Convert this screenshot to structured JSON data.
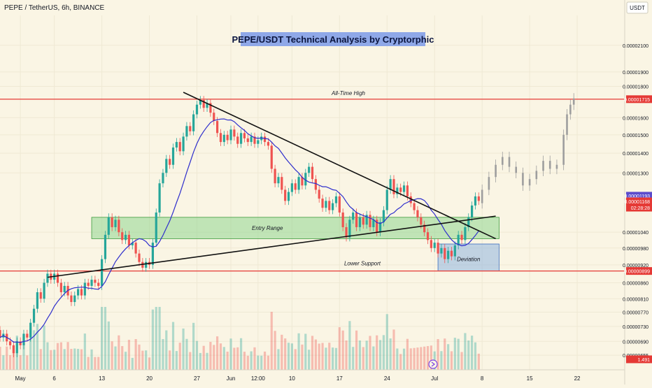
{
  "header": {
    "symbol": "PEPE / TetherUS, 6h, BINANCE",
    "currency": "USDT"
  },
  "colors": {
    "background": "#faf5e4",
    "candle_up": "#26a69a",
    "candle_down": "#ef5350",
    "ma_line": "#2e2ecc",
    "resistance_line": "#e53935",
    "zone_fill": "#8fd68f",
    "deviation_fill": "#8fb4e0",
    "title_bg": "#8fa8e8",
    "projection": "#9e9e9e",
    "price_tag_red": "#e53935",
    "price_tag_blue": "#5b4ccc"
  },
  "chart_data": {
    "type": "candlestick",
    "title": "PEPE/USDT Technical Analysis by Cryptorphic",
    "y_scale": "log",
    "ylim": [
      6.2e-06,
      2.35e-05
    ],
    "y_ticks": [
      "0.00002100",
      "0.00001900",
      "0.00001800",
      "0.00001600",
      "0.00001500",
      "0.00001400",
      "0.00001300",
      "0.00001040",
      "0.00000980",
      "0.00000920",
      "0.00000860",
      "0.00000810",
      "0.00000770",
      "0.00000730",
      "0.00000690",
      "0.00000655"
    ],
    "x_ticks": [
      "May",
      "6",
      "13",
      "20",
      "27",
      "Jun",
      "12:00",
      "10",
      "17",
      "24",
      "Jul",
      "8",
      "15",
      "22"
    ],
    "x_tick_values": [
      0,
      5,
      12,
      19,
      26,
      31,
      35,
      40,
      47,
      54,
      61,
      68,
      75,
      82
    ],
    "x_range": [
      -3,
      89
    ],
    "price_tags": [
      {
        "label": "0.00001715",
        "value": 1.715e-05,
        "color": "red"
      },
      {
        "label": "0.00001193",
        "value": 1.193e-05,
        "color": "blue"
      },
      {
        "label": "0.00001168",
        "value": 1.168e-05,
        "color": "red",
        "sub": "02:28:28"
      },
      {
        "label": "0.00000899",
        "value": 8.99e-06,
        "color": "red"
      },
      {
        "label": "1.491",
        "value": 6.45e-06,
        "color": "red"
      }
    ],
    "horizontal_levels": [
      {
        "label": "All-Time High",
        "value": 1.715e-05
      },
      {
        "label": "Lower Support",
        "value": 8.99e-06
      }
    ],
    "zones": [
      {
        "label": "Entry Range",
        "x_start": 10.5,
        "x_end": 70.5,
        "y_low": 1.015e-05,
        "y_high": 1.1e-05
      },
      {
        "label": "Deviation",
        "x_start": 61.5,
        "x_end": 70.5,
        "y_low": 8.99e-06,
        "y_high": 9.95e-06
      }
    ],
    "trendlines": [
      {
        "name": "descending resistance",
        "from": [
          24,
          1.76e-05
        ],
        "to": [
          70,
          1.015e-05
        ]
      },
      {
        "name": "ascending support",
        "from": [
          4,
          8.78e-06
        ],
        "to": [
          70,
          1.105e-05
        ]
      }
    ],
    "candles": [
      {
        "d": -3,
        "o": 7.2e-06,
        "c": 7e-06
      },
      {
        "d": -2.5,
        "o": 7e-06,
        "c": 7.1e-06
      },
      {
        "d": -2,
        "o": 7.1e-06,
        "c": 6.9e-06
      },
      {
        "d": -1.5,
        "o": 6.9e-06,
        "c": 6.8e-06
      },
      {
        "d": -1,
        "o": 6.8e-06,
        "c": 6.6e-06
      },
      {
        "d": -0.5,
        "o": 6.6e-06,
        "c": 6.9e-06
      },
      {
        "d": 0,
        "o": 6.9e-06,
        "c": 6.8e-06
      },
      {
        "d": 0.5,
        "o": 6.8e-06,
        "c": 7.1e-06
      },
      {
        "d": 1,
        "o": 7.1e-06,
        "c": 7e-06
      },
      {
        "d": 1.5,
        "o": 7e-06,
        "c": 7.4e-06
      },
      {
        "d": 2,
        "o": 7.4e-06,
        "c": 7.8e-06
      },
      {
        "d": 2.5,
        "o": 7.8e-06,
        "c": 8.3e-06
      },
      {
        "d": 3,
        "o": 8.3e-06,
        "c": 8.1e-06
      },
      {
        "d": 3.5,
        "o": 8.1e-06,
        "c": 8.6e-06
      },
      {
        "d": 4,
        "o": 8.6e-06,
        "c": 8.9e-06
      },
      {
        "d": 4.5,
        "o": 8.9e-06,
        "c": 8.7e-06
      },
      {
        "d": 5,
        "o": 8.7e-06,
        "c": 8.9e-06
      },
      {
        "d": 5.5,
        "o": 8.9e-06,
        "c": 8.6e-06
      },
      {
        "d": 6,
        "o": 8.6e-06,
        "c": 8.3e-06
      },
      {
        "d": 6.5,
        "o": 8.3e-06,
        "c": 8.5e-06
      },
      {
        "d": 7,
        "o": 8.5e-06,
        "c": 8.2e-06
      },
      {
        "d": 7.5,
        "o": 8.2e-06,
        "c": 8e-06
      },
      {
        "d": 8,
        "o": 8e-06,
        "c": 8.2e-06
      },
      {
        "d": 8.5,
        "o": 8.2e-06,
        "c": 8.4e-06
      },
      {
        "d": 9,
        "o": 8.4e-06,
        "c": 8.2e-06
      },
      {
        "d": 9.5,
        "o": 8.2e-06,
        "c": 8.6e-06
      },
      {
        "d": 10,
        "o": 8.6e-06,
        "c": 8.5e-06
      },
      {
        "d": 10.5,
        "o": 8.5e-06,
        "c": 8.7e-06
      },
      {
        "d": 11,
        "o": 8.7e-06,
        "c": 8.6e-06
      },
      {
        "d": 11.5,
        "o": 8.6e-06,
        "c": 8.5e-06
      },
      {
        "d": 12,
        "o": 8.5e-06,
        "c": 9.4e-06
      },
      {
        "d": 12.5,
        "o": 9.4e-06,
        "c": 1.03e-05
      },
      {
        "d": 13,
        "o": 1.03e-05,
        "c": 1.1e-05
      },
      {
        "d": 13.5,
        "o": 1.1e-05,
        "c": 1.06e-05
      },
      {
        "d": 14,
        "o": 1.06e-05,
        "c": 1.09e-05
      },
      {
        "d": 14.5,
        "o": 1.09e-05,
        "c": 1.04e-05
      },
      {
        "d": 15,
        "o": 1.04e-05,
        "c": 1.01e-05
      },
      {
        "d": 15.5,
        "o": 1.01e-05,
        "c": 1.03e-05
      },
      {
        "d": 16,
        "o": 1.03e-05,
        "c": 9.9e-06
      },
      {
        "d": 16.5,
        "o": 9.9e-06,
        "c": 1e-05
      },
      {
        "d": 17,
        "o": 1e-05,
        "c": 9.6e-06
      },
      {
        "d": 17.5,
        "o": 9.6e-06,
        "c": 9.3e-06
      },
      {
        "d": 18,
        "o": 9.3e-06,
        "c": 9.1e-06
      },
      {
        "d": 18.5,
        "o": 9.1e-06,
        "c": 9.3e-06
      },
      {
        "d": 19,
        "o": 9.3e-06,
        "c": 9.2e-06
      },
      {
        "d": 19.5,
        "o": 9.2e-06,
        "c": 1e-05
      },
      {
        "d": 20,
        "o": 1e-05,
        "c": 1.12e-05
      },
      {
        "d": 20.5,
        "o": 1.12e-05,
        "c": 1.25e-05
      },
      {
        "d": 21,
        "o": 1.25e-05,
        "c": 1.3e-05
      },
      {
        "d": 21.5,
        "o": 1.3e-05,
        "c": 1.37e-05
      },
      {
        "d": 22,
        "o": 1.37e-05,
        "c": 1.34e-05
      },
      {
        "d": 22.5,
        "o": 1.34e-05,
        "c": 1.43e-05
      },
      {
        "d": 23,
        "o": 1.43e-05,
        "c": 1.46e-05
      },
      {
        "d": 23.5,
        "o": 1.46e-05,
        "c": 1.41e-05
      },
      {
        "d": 24,
        "o": 1.41e-05,
        "c": 1.49e-05
      },
      {
        "d": 24.5,
        "o": 1.49e-05,
        "c": 1.55e-05
      },
      {
        "d": 25,
        "o": 1.55e-05,
        "c": 1.52e-05
      },
      {
        "d": 25.5,
        "o": 1.52e-05,
        "c": 1.62e-05
      },
      {
        "d": 26,
        "o": 1.62e-05,
        "c": 1.68e-05
      },
      {
        "d": 26.5,
        "o": 1.68e-05,
        "c": 1.71e-05
      },
      {
        "d": 27,
        "o": 1.71e-05,
        "c": 1.66e-05
      },
      {
        "d": 27.5,
        "o": 1.66e-05,
        "c": 1.69e-05
      },
      {
        "d": 28,
        "o": 1.69e-05,
        "c": 1.63e-05
      },
      {
        "d": 28.5,
        "o": 1.63e-05,
        "c": 1.58e-05
      },
      {
        "d": 29,
        "o": 1.58e-05,
        "c": 1.51e-05
      },
      {
        "d": 29.5,
        "o": 1.51e-05,
        "c": 1.46e-05
      },
      {
        "d": 30,
        "o": 1.46e-05,
        "c": 1.5e-05
      },
      {
        "d": 30.5,
        "o": 1.5e-05,
        "c": 1.47e-05
      },
      {
        "d": 31,
        "o": 1.47e-05,
        "c": 1.53e-05
      },
      {
        "d": 31.5,
        "o": 1.53e-05,
        "c": 1.49e-05
      },
      {
        "d": 32,
        "o": 1.49e-05,
        "c": 1.45e-05
      },
      {
        "d": 32.5,
        "o": 1.45e-05,
        "c": 1.51e-05
      },
      {
        "d": 33,
        "o": 1.51e-05,
        "c": 1.48e-05
      },
      {
        "d": 33.5,
        "o": 1.48e-05,
        "c": 1.46e-05
      },
      {
        "d": 34,
        "o": 1.46e-05,
        "c": 1.49e-05
      },
      {
        "d": 34.5,
        "o": 1.49e-05,
        "c": 1.45e-05
      },
      {
        "d": 35,
        "o": 1.45e-05,
        "c": 1.47e-05
      },
      {
        "d": 35.5,
        "o": 1.47e-05,
        "c": 1.49e-05
      },
      {
        "d": 36,
        "o": 1.49e-05,
        "c": 1.46e-05
      },
      {
        "d": 36.5,
        "o": 1.46e-05,
        "c": 1.44e-05
      },
      {
        "d": 37,
        "o": 1.44e-05,
        "c": 1.32e-05
      },
      {
        "d": 37.5,
        "o": 1.32e-05,
        "c": 1.25e-05
      },
      {
        "d": 38,
        "o": 1.25e-05,
        "c": 1.28e-05
      },
      {
        "d": 38.5,
        "o": 1.28e-05,
        "c": 1.22e-05
      },
      {
        "d": 39,
        "o": 1.22e-05,
        "c": 1.17e-05
      },
      {
        "d": 39.5,
        "o": 1.17e-05,
        "c": 1.21e-05
      },
      {
        "d": 40,
        "o": 1.21e-05,
        "c": 1.25e-05
      },
      {
        "d": 40.5,
        "o": 1.25e-05,
        "c": 1.22e-05
      },
      {
        "d": 41,
        "o": 1.22e-05,
        "c": 1.28e-05
      },
      {
        "d": 41.5,
        "o": 1.28e-05,
        "c": 1.24e-05
      },
      {
        "d": 42,
        "o": 1.24e-05,
        "c": 1.3e-05
      },
      {
        "d": 42.5,
        "o": 1.3e-05,
        "c": 1.33e-05
      },
      {
        "d": 43,
        "o": 1.33e-05,
        "c": 1.27e-05
      },
      {
        "d": 43.5,
        "o": 1.27e-05,
        "c": 1.22e-05
      },
      {
        "d": 44,
        "o": 1.22e-05,
        "c": 1.18e-05
      },
      {
        "d": 44.5,
        "o": 1.18e-05,
        "c": 1.14e-05
      },
      {
        "d": 45,
        "o": 1.14e-05,
        "c": 1.17e-05
      },
      {
        "d": 45.5,
        "o": 1.17e-05,
        "c": 1.13e-05
      },
      {
        "d": 46,
        "o": 1.13e-05,
        "c": 1.16e-05
      },
      {
        "d": 46.5,
        "o": 1.16e-05,
        "c": 1.19e-05
      },
      {
        "d": 47,
        "o": 1.19e-05,
        "c": 1.12e-05
      },
      {
        "d": 47.5,
        "o": 1.12e-05,
        "c": 1.06e-05
      },
      {
        "d": 48,
        "o": 1.06e-05,
        "c": 1.02e-05
      },
      {
        "d": 48.5,
        "o": 1.02e-05,
        "c": 1.09e-05
      },
      {
        "d": 49,
        "o": 1.09e-05,
        "c": 1.12e-05
      },
      {
        "d": 49.5,
        "o": 1.12e-05,
        "c": 1.06e-05
      },
      {
        "d": 50,
        "o": 1.06e-05,
        "c": 1.1e-05
      },
      {
        "d": 50.5,
        "o": 1.1e-05,
        "c": 1.07e-05
      },
      {
        "d": 51,
        "o": 1.07e-05,
        "c": 1.11e-05
      },
      {
        "d": 51.5,
        "o": 1.11e-05,
        "c": 1.06e-05
      },
      {
        "d": 52,
        "o": 1.06e-05,
        "c": 1.09e-05
      },
      {
        "d": 52.5,
        "o": 1.09e-05,
        "c": 1.04e-05
      },
      {
        "d": 53,
        "o": 1.04e-05,
        "c": 1.08e-05
      },
      {
        "d": 53.5,
        "o": 1.08e-05,
        "c": 1.13e-05
      },
      {
        "d": 54,
        "o": 1.13e-05,
        "c": 1.22e-05
      },
      {
        "d": 54.5,
        "o": 1.22e-05,
        "c": 1.27e-05
      },
      {
        "d": 55,
        "o": 1.27e-05,
        "c": 1.2e-05
      },
      {
        "d": 55.5,
        "o": 1.2e-05,
        "c": 1.23e-05
      },
      {
        "d": 56,
        "o": 1.23e-05,
        "c": 1.21e-05
      },
      {
        "d": 56.5,
        "o": 1.21e-05,
        "c": 1.24e-05
      },
      {
        "d": 57,
        "o": 1.24e-05,
        "c": 1.19e-05
      },
      {
        "d": 57.5,
        "o": 1.19e-05,
        "c": 1.16e-05
      },
      {
        "d": 58,
        "o": 1.16e-05,
        "c": 1.13e-05
      },
      {
        "d": 58.5,
        "o": 1.13e-05,
        "c": 1.1e-05
      },
      {
        "d": 59,
        "o": 1.1e-05,
        "c": 1.07e-05
      },
      {
        "d": 59.5,
        "o": 1.07e-05,
        "c": 1.04e-05
      },
      {
        "d": 60,
        "o": 1.04e-05,
        "c": 1.01e-05
      },
      {
        "d": 60.5,
        "o": 1.01e-05,
        "c": 9.8e-06
      },
      {
        "d": 61,
        "o": 9.8e-06,
        "c": 1e-05
      },
      {
        "d": 61.5,
        "o": 1e-05,
        "c": 9.6e-06
      },
      {
        "d": 62,
        "o": 9.6e-06,
        "c": 9.8e-06
      },
      {
        "d": 62.5,
        "o": 9.8e-06,
        "c": 9.4e-06
      },
      {
        "d": 63,
        "o": 9.4e-06,
        "c": 9.7e-06
      },
      {
        "d": 63.5,
        "o": 9.7e-06,
        "c": 9.5e-06
      },
      {
        "d": 64,
        "o": 9.5e-06,
        "c": 9.9e-06
      },
      {
        "d": 64.5,
        "o": 9.9e-06,
        "c": 1.03e-05
      },
      {
        "d": 65,
        "o": 1.03e-05,
        "c": 1.01e-05
      },
      {
        "d": 65.5,
        "o": 1.01e-05,
        "c": 1.06e-05
      },
      {
        "d": 66,
        "o": 1.06e-05,
        "c": 1.1e-05
      },
      {
        "d": 66.5,
        "o": 1.1e-05,
        "c": 1.15e-05
      },
      {
        "d": 67,
        "o": 1.15e-05,
        "c": 1.19e-05
      },
      {
        "d": 67.5,
        "o": 1.19e-05,
        "c": 1.17e-05
      }
    ],
    "projection": [
      {
        "d": 68,
        "o": 1.16e-05,
        "c": 1.22e-05
      },
      {
        "d": 69,
        "o": 1.22e-05,
        "c": 1.28e-05
      },
      {
        "d": 70,
        "o": 1.28e-05,
        "c": 1.34e-05
      },
      {
        "d": 71,
        "o": 1.34e-05,
        "c": 1.38e-05
      },
      {
        "d": 72,
        "o": 1.38e-05,
        "c": 1.33e-05
      },
      {
        "d": 73,
        "o": 1.33e-05,
        "c": 1.3e-05
      },
      {
        "d": 74,
        "o": 1.3e-05,
        "c": 1.24e-05
      },
      {
        "d": 75,
        "o": 1.24e-05,
        "c": 1.27e-05
      },
      {
        "d": 76,
        "o": 1.27e-05,
        "c": 1.31e-05
      },
      {
        "d": 77,
        "o": 1.31e-05,
        "c": 1.36e-05
      },
      {
        "d": 78,
        "o": 1.36e-05,
        "c": 1.32e-05
      },
      {
        "d": 79,
        "o": 1.32e-05,
        "c": 1.34e-05
      },
      {
        "d": 80,
        "o": 1.34e-05,
        "c": 1.5e-05
      },
      {
        "d": 80.5,
        "o": 1.5e-05,
        "c": 1.62e-05
      },
      {
        "d": 81,
        "o": 1.62e-05,
        "c": 1.68e-05
      },
      {
        "d": 81.5,
        "o": 1.68e-05,
        "c": 1.72e-05
      }
    ]
  }
}
